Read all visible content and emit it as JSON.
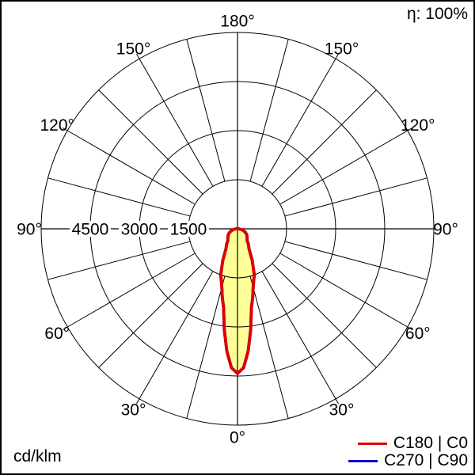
{
  "eta_label": "η: 100%",
  "unit_label": "cd/klm",
  "legend": {
    "items": [
      {
        "label": "C180 | C0",
        "color": "#e00000"
      },
      {
        "label": "C270 | C90",
        "color": "#0000cc"
      }
    ]
  },
  "colors": {
    "background": "#ffffff",
    "border": "#000000",
    "grid": "#000000",
    "text": "#000000",
    "curve_red": "#e00000",
    "curve_blue": "#0000cc",
    "lobe_fill": "#ffff99"
  },
  "chart_data": {
    "type": "line",
    "subtype": "polar-photometric-distribution",
    "title": "",
    "unit": "cd/klm",
    "efficiency": "η: 100%",
    "zero_angle_position": "bottom",
    "angle_tick_step_deg": 15,
    "angle_label_step_deg": 30,
    "angle_label_values_deg": [
      0,
      30,
      60,
      90,
      120,
      150,
      180
    ],
    "radial_axis": {
      "tick_values": [
        1500,
        3000,
        4500
      ],
      "tick_labels_shown": [
        "4500",
        "3000",
        "1500"
      ],
      "max_value": 6000,
      "rings": 4,
      "grid": true
    },
    "legend_position": "bottom-right",
    "series": [
      {
        "name": "C180 | C0",
        "color": "#e00000",
        "fill_color": "#ffff99",
        "symmetric_about_vertical_axis": true,
        "angles_deg": [
          0,
          2.5,
          5,
          7.5,
          10,
          12.5,
          15,
          17.5,
          20,
          25,
          30,
          35,
          40,
          45,
          50,
          55,
          60,
          65,
          70,
          75,
          80,
          85,
          90
        ],
        "values_cd_per_klm": [
          4420,
          4250,
          3750,
          3100,
          2450,
          2150,
          1850,
          1650,
          1500,
          1065,
          700,
          580,
          450,
          420,
          380,
          350,
          310,
          270,
          220,
          170,
          120,
          60,
          0
        ]
      },
      {
        "name": "C270 | C90",
        "color": "#0000cc",
        "fill_color": "#ffff99",
        "symmetric_about_vertical_axis": true,
        "hidden_behind_red_curve": true,
        "angles_deg": [
          0,
          2.5,
          5,
          7.5,
          10,
          12.5,
          15,
          17.5,
          20,
          25,
          30,
          35,
          40,
          45,
          50,
          55,
          60,
          65,
          70,
          75,
          80,
          85,
          90
        ],
        "values_cd_per_klm": [
          4420,
          4250,
          3750,
          3100,
          2450,
          2150,
          1850,
          1650,
          1500,
          1065,
          700,
          580,
          450,
          420,
          380,
          350,
          310,
          270,
          220,
          170,
          120,
          60,
          0
        ]
      }
    ]
  }
}
